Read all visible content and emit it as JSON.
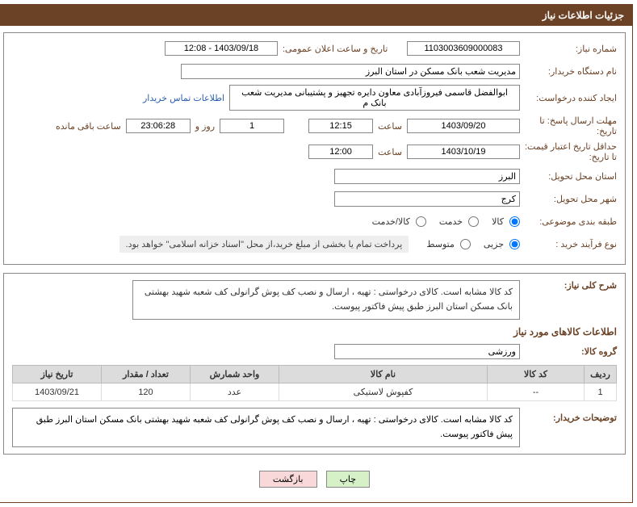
{
  "header": {
    "title": "جزئیات اطلاعات نیاز"
  },
  "fields": {
    "need_number_label": "شماره نیاز:",
    "need_number": "1103003609000083",
    "announce_label": "تاریخ و ساعت اعلان عمومی:",
    "announce_value": "1403/09/18 - 12:08",
    "buyer_org_label": "نام دستگاه خریدار:",
    "buyer_org": "مدیریت شعب بانک مسکن در استان البرز",
    "requester_label": "ایجاد کننده درخواست:",
    "requester": "ابوالفضل قاسمی فیروزآبادی معاون دایره تجهیز و پشتیبانی مدیریت شعب بانک م",
    "contact_link": "اطلاعات تماس خریدار",
    "deadline_label": "مهلت ارسال پاسخ: تا تاریخ:",
    "deadline_date": "1403/09/20",
    "time_label": "ساعت",
    "deadline_time": "12:15",
    "remaining_days": "1",
    "day_and_label": "روز و",
    "remaining_time": "23:06:28",
    "remaining_label": "ساعت باقی مانده",
    "validity_label": "حداقل تاریخ اعتبار قیمت: تا تاریخ:",
    "validity_date": "1403/10/19",
    "validity_time": "12:00",
    "delivery_province_label": "استان محل تحویل:",
    "delivery_province": "البرز",
    "delivery_city_label": "شهر محل تحویل:",
    "delivery_city": "کرج",
    "category_label": "طبقه بندی موضوعی:",
    "cat_goods": "کالا",
    "cat_service": "خدمت",
    "cat_both": "کالا/خدمت",
    "process_label": "نوع فرآیند خرید :",
    "proc_partial": "جزیی",
    "proc_medium": "متوسط",
    "payment_note": "پرداخت تمام یا بخشی از مبلغ خرید،از محل \"اسناد خزانه اسلامی\" خواهد بود."
  },
  "summary": {
    "label": "شرح کلی نیاز:",
    "text": "کد کالا مشابه است. کالای درخواستی : تهیه ، ارسال و نصب کف پوش گرانولی کف شعبه شهید بهشتی بانک مسکن استان البرز طبق پیش فاکتور پیوست."
  },
  "goods": {
    "section_title": "اطلاعات کالاهای مورد نیاز",
    "group_label": "گروه کالا:",
    "group_value": "ورزشی",
    "headers": {
      "radif": "ردیف",
      "code": "کد کالا",
      "name": "نام کالا",
      "unit": "واحد شمارش",
      "qty": "تعداد / مقدار",
      "date": "تاریخ نیاز"
    },
    "rows": [
      {
        "radif": "1",
        "code": "--",
        "name": "کفپوش لاستیکی",
        "unit": "عدد",
        "qty": "120",
        "date": "1403/09/21"
      }
    ]
  },
  "buyer_desc": {
    "label": "توضیحات خریدار:",
    "text": "کد کالا مشابه است. کالای درخواستی : تهیه ، ارسال و نصب کف پوش گرانولی کف شعبه شهید بهشتی بانک مسکن استان البرز طبق پیش فاکتور پیوست."
  },
  "buttons": {
    "print": "چاپ",
    "back": "بازگشت"
  },
  "colors": {
    "brand": "#6b4226",
    "link": "#2a5db0",
    "th_bg": "#dcdcdc"
  }
}
